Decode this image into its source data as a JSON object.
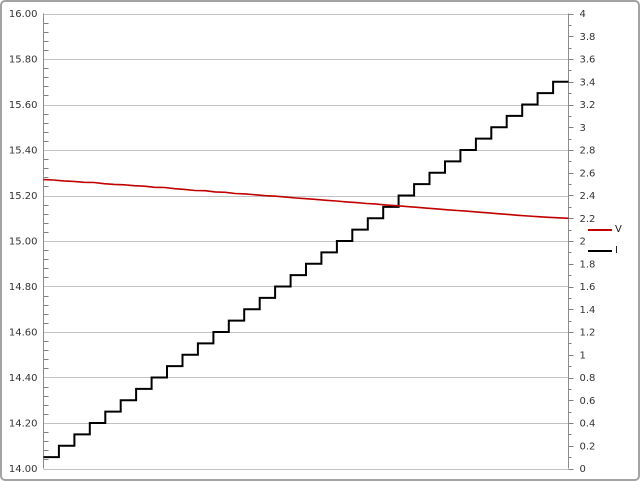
{
  "chart_data": {
    "type": "line",
    "title": "",
    "xlabel": "",
    "ylabel_left": "",
    "ylabel_right": "",
    "grid": true,
    "legend_position": "right-middle",
    "axes": {
      "left": {
        "min": 14.0,
        "max": 16.0,
        "major_step": 0.2,
        "minor_step": 0.04,
        "tick_labels": [
          "16.00",
          "15.80",
          "15.60",
          "15.40",
          "15.20",
          "15.00",
          "14.80",
          "14.60",
          "14.40",
          "14.20",
          "14.00"
        ]
      },
      "right": {
        "min": 0,
        "max": 4,
        "major_step": 0.2,
        "minor_step": 0.1,
        "tick_labels": [
          "4",
          "3.8",
          "3.6",
          "3.4",
          "3.2",
          "3",
          "2.8",
          "2.6",
          "2.4",
          "2.2",
          "2",
          "1.8",
          "1.6",
          "1.4",
          "1.2",
          "1",
          "0.8",
          "0.6",
          "0.4",
          "0.2",
          "0"
        ]
      }
    },
    "series": [
      {
        "name": "V",
        "axis": "left",
        "color": "#c00000",
        "style": "line",
        "values": [
          15.27,
          15.268,
          15.264,
          15.262,
          15.258,
          15.257,
          15.252,
          15.249,
          15.247,
          15.243,
          15.241,
          15.236,
          15.235,
          15.23,
          15.227,
          15.222,
          15.221,
          15.216,
          15.214,
          15.209,
          15.207,
          15.203,
          15.199,
          15.197,
          15.193,
          15.189,
          15.186,
          15.183,
          15.179,
          15.176,
          15.172,
          15.169,
          15.165,
          15.162,
          15.158,
          15.155,
          15.151,
          15.148,
          15.144,
          15.141,
          15.137,
          15.134,
          15.131,
          15.127,
          15.124,
          15.12,
          15.117,
          15.113,
          15.11,
          15.107,
          15.104,
          15.102,
          15.1
        ]
      },
      {
        "name": "I",
        "axis": "right",
        "color": "#000000",
        "style": "step",
        "values": [
          0.1,
          0.2,
          0.3,
          0.4,
          0.5,
          0.6,
          0.7,
          0.8,
          0.9,
          1.0,
          1.1,
          1.2,
          1.3,
          1.4,
          1.5,
          1.6,
          1.7,
          1.8,
          1.9,
          2.0,
          2.1,
          2.2,
          2.3,
          2.4,
          2.5,
          2.6,
          2.7,
          2.8,
          2.9,
          3.0,
          3.1,
          3.2,
          3.3,
          3.4
        ]
      }
    ]
  },
  "legend": {
    "items": [
      {
        "label": "V",
        "color": "#c00000"
      },
      {
        "label": "I",
        "color": "#000000"
      }
    ]
  },
  "colors": {
    "gridline": "#c3c3c3",
    "axis_line": "#8c8c8c",
    "tick": "#808080",
    "label_text": "#333333",
    "series_v": "#c00000",
    "series_i": "#000000",
    "frame_border": "#a3a3a3",
    "background": "#ffffff"
  }
}
